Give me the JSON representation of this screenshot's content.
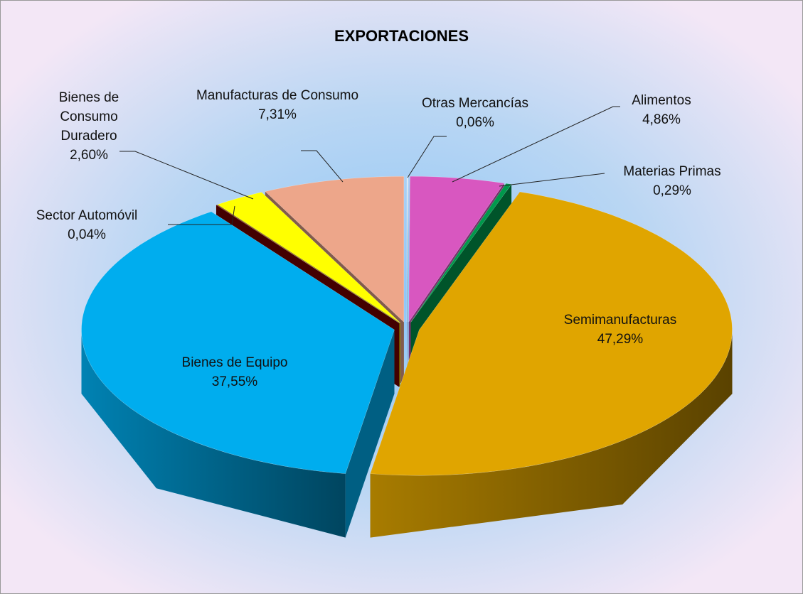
{
  "chart_data": {
    "type": "pie",
    "title": "EXPORTACIONES",
    "categories": [
      "Otras Mercancías",
      "Alimentos",
      "Materias Primas",
      "Semimanufacturas",
      "Bienes de Equipo",
      "Sector Automóvil",
      "Bienes de Consumo Duradero",
      "Manufacturas de Consumo"
    ],
    "values": [
      0.06,
      4.86,
      0.29,
      47.29,
      37.55,
      0.04,
      2.6,
      7.31
    ],
    "value_labels": [
      "0,06%",
      "4,86%",
      "0,29%",
      "47,29%",
      "37,55%",
      "0,04%",
      "2,60%",
      "7,31%"
    ],
    "colors": [
      "#dce9f5",
      "#d857c0",
      "#00994c",
      "#e0a500",
      "#00adee",
      "#7a0000",
      "#ffff00",
      "#eda68a"
    ]
  }
}
